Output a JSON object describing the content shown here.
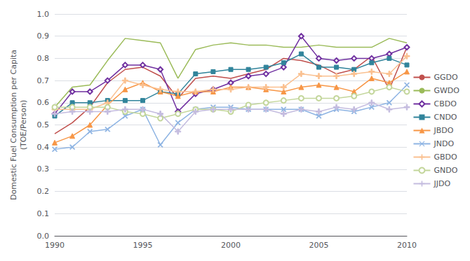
{
  "chart_data": {
    "type": "line",
    "ylabel": "Domestic Fuel Consumption per Capita\n(TOE/Person)",
    "x": [
      1990,
      1991,
      1992,
      1993,
      1994,
      1995,
      1996,
      1997,
      1998,
      1999,
      2000,
      2001,
      2002,
      2003,
      2004,
      2005,
      2006,
      2007,
      2008,
      2009,
      2010
    ],
    "series": [
      {
        "name": "GGDO",
        "color": "#C0504D",
        "marker": "none",
        "values": [
          0.46,
          0.51,
          0.58,
          0.69,
          0.75,
          0.76,
          0.72,
          0.62,
          0.71,
          0.72,
          0.71,
          0.73,
          0.75,
          0.8,
          0.79,
          0.77,
          0.73,
          0.75,
          0.81,
          0.66,
          0.85
        ]
      },
      {
        "name": "GWDO",
        "color": "#9BBB59",
        "marker": "none",
        "values": [
          0.58,
          0.67,
          0.68,
          0.79,
          0.89,
          0.88,
          0.87,
          0.71,
          0.84,
          0.86,
          0.87,
          0.86,
          0.86,
          0.85,
          0.85,
          0.86,
          0.85,
          0.85,
          0.85,
          0.89,
          0.87
        ]
      },
      {
        "name": "CBDO",
        "color": "#7030A0",
        "marker": "D",
        "values": [
          0.55,
          0.65,
          0.65,
          0.7,
          0.77,
          0.77,
          0.75,
          0.56,
          0.64,
          0.66,
          0.69,
          0.72,
          0.73,
          0.76,
          0.9,
          0.8,
          0.79,
          0.8,
          0.8,
          0.82,
          0.85
        ]
      },
      {
        "name": "CNDO",
        "color": "#31849B",
        "marker": "s",
        "values": [
          0.54,
          0.6,
          0.6,
          0.61,
          0.61,
          0.61,
          0.65,
          0.64,
          0.73,
          0.74,
          0.75,
          0.75,
          0.76,
          0.78,
          0.82,
          0.76,
          0.76,
          0.75,
          0.78,
          0.8,
          0.77
        ]
      },
      {
        "name": "JBDO",
        "color": "#F79646",
        "marker": "^",
        "values": [
          0.42,
          0.45,
          0.5,
          0.59,
          0.66,
          0.69,
          0.65,
          0.63,
          0.65,
          0.65,
          0.67,
          0.67,
          0.66,
          0.65,
          0.67,
          0.68,
          0.67,
          0.65,
          0.71,
          0.69,
          0.74
        ]
      },
      {
        "name": "JNDO",
        "color": "#8EB4E3",
        "marker": "x",
        "values": [
          0.39,
          0.4,
          0.47,
          0.48,
          0.54,
          0.57,
          0.41,
          0.51,
          0.57,
          0.58,
          0.58,
          0.57,
          0.57,
          0.57,
          0.57,
          0.54,
          0.57,
          0.56,
          0.58,
          0.6,
          0.68
        ]
      },
      {
        "name": "GBDO",
        "color": "#FAC090",
        "marker": "+",
        "values": [
          0.57,
          0.57,
          0.57,
          0.6,
          0.7,
          0.68,
          0.66,
          0.65,
          0.65,
          0.66,
          0.66,
          0.67,
          0.67,
          0.67,
          0.73,
          0.72,
          0.72,
          0.73,
          0.74,
          0.73,
          0.81
        ]
      },
      {
        "name": "GNDO",
        "color": "#C3D69B",
        "marker": "o",
        "values": [
          0.58,
          0.58,
          0.58,
          0.58,
          0.56,
          0.55,
          0.53,
          0.55,
          0.57,
          0.57,
          0.56,
          0.59,
          0.6,
          0.61,
          0.62,
          0.62,
          0.62,
          0.63,
          0.65,
          0.67,
          0.65
        ]
      },
      {
        "name": "JJDO",
        "color": "#C4BCDF",
        "marker": "+",
        "values": [
          0.55,
          0.56,
          0.56,
          0.56,
          0.57,
          0.57,
          0.55,
          0.47,
          0.56,
          0.57,
          0.57,
          0.57,
          0.57,
          0.55,
          0.57,
          0.56,
          0.58,
          0.57,
          0.6,
          0.57,
          0.58
        ]
      }
    ],
    "xlim": [
      1990,
      2010
    ],
    "xticks": [
      1990,
      1995,
      2000,
      2005,
      2010
    ],
    "ylim": [
      0.0,
      1.0
    ],
    "yticks": [
      {
        "value": 0.0,
        "label": "0.0"
      },
      0.1,
      0.2,
      0.3,
      0.4,
      0.5,
      0.6,
      0.7,
      0.8,
      0.9,
      {
        "value": 1.0,
        "label": "1.0"
      }
    ],
    "grid": true,
    "legend": "right"
  }
}
